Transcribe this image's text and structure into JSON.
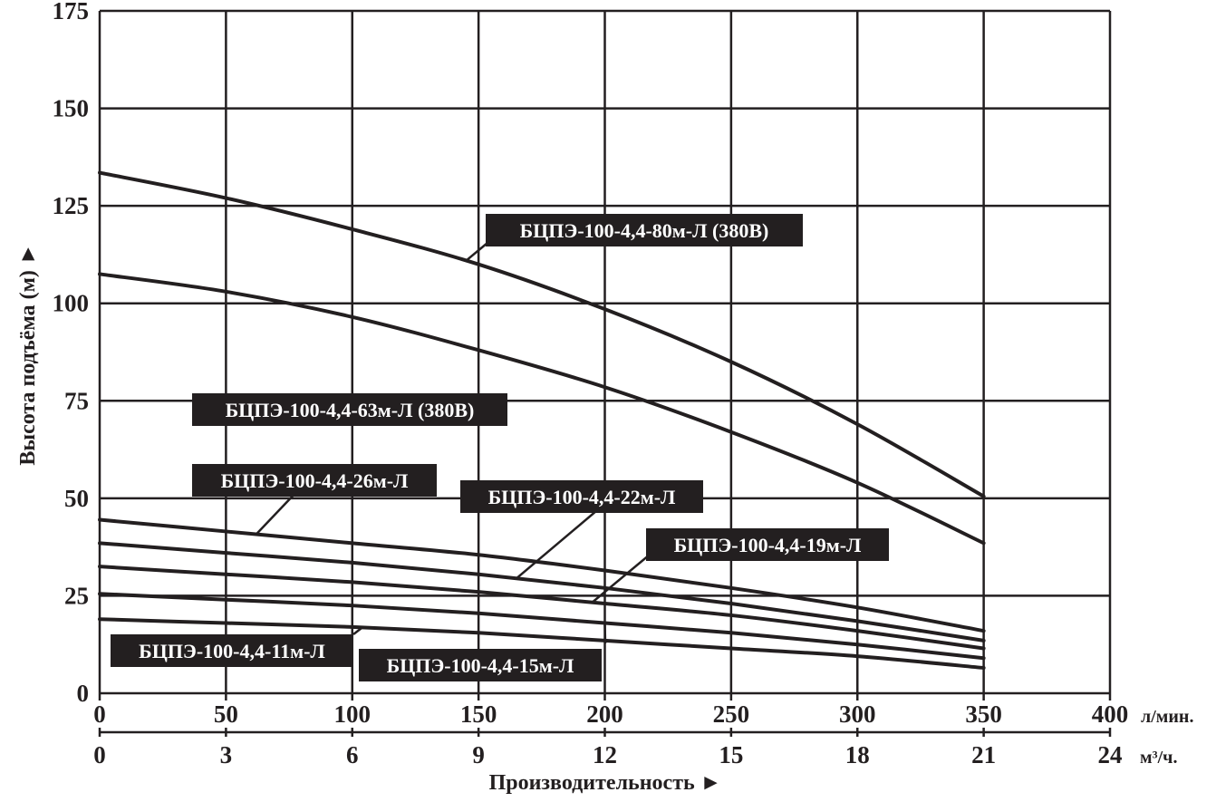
{
  "chart_data": {
    "type": "line",
    "x_primary": {
      "unit": "л/мин.",
      "ticks": [
        0,
        50,
        100,
        150,
        200,
        250,
        300,
        350,
        400
      ],
      "range": [
        0,
        400
      ]
    },
    "x_secondary": {
      "unit": "м³/ч.",
      "ticks": [
        0,
        3,
        6,
        9,
        12,
        15,
        18,
        21,
        24
      ],
      "range": [
        0,
        24
      ]
    },
    "y": {
      "ticks": [
        0,
        25,
        50,
        75,
        100,
        125,
        150,
        175
      ],
      "range": [
        0,
        175
      ]
    },
    "xlabel": "Производительность ►",
    "ylabel": "Высота подъёма (м) ►",
    "grid": true,
    "series": [
      {
        "name": "БЦПЭ-100-4,4-80м-Л (380В)",
        "x": [
          0,
          50,
          100,
          150,
          200,
          250,
          300,
          350
        ],
        "y": [
          133.5,
          127,
          119,
          110,
          98.5,
          85,
          69,
          50.5
        ]
      },
      {
        "name": "БЦПЭ-100-4,4-63м-Л (380В)",
        "x": [
          0,
          50,
          100,
          150,
          200,
          250,
          300,
          350
        ],
        "y": [
          107.5,
          103,
          96.5,
          88,
          78.5,
          67,
          54,
          38.5
        ]
      },
      {
        "name": "БЦПЭ-100-4,4-26м-Л",
        "x": [
          0,
          50,
          100,
          150,
          200,
          250,
          300,
          350
        ],
        "y": [
          44.5,
          41.5,
          38.5,
          35.5,
          31.5,
          27,
          22,
          16
        ]
      },
      {
        "name": "БЦПЭ-100-4,4-22м-Л",
        "x": [
          0,
          50,
          100,
          150,
          200,
          250,
          300,
          350
        ],
        "y": [
          38.5,
          36,
          33.5,
          30.5,
          27,
          23,
          18.5,
          13.5
        ]
      },
      {
        "name": "БЦПЭ-100-4,4-19м-Л",
        "x": [
          0,
          50,
          100,
          150,
          200,
          250,
          300,
          350
        ],
        "y": [
          32.5,
          30.5,
          28.5,
          26,
          23,
          20,
          16,
          11.5
        ]
      },
      {
        "name": "БЦПЭ-100-4,4-15м-Л",
        "x": [
          0,
          50,
          100,
          150,
          200,
          250,
          300,
          350
        ],
        "y": [
          25.5,
          24,
          22.5,
          20.5,
          18,
          15.5,
          12.5,
          9
        ]
      },
      {
        "name": "БЦПЭ-100-4,4-11м-Л",
        "x": [
          0,
          50,
          100,
          150,
          200,
          250,
          300,
          350
        ],
        "y": [
          19,
          18,
          17,
          15.5,
          13.5,
          11.5,
          9.5,
          6.5
        ]
      }
    ],
    "colors": {
      "ink": "#231f20",
      "label_bg": "#231f20",
      "label_text": "#ffffff",
      "background": "#ffffff"
    }
  }
}
